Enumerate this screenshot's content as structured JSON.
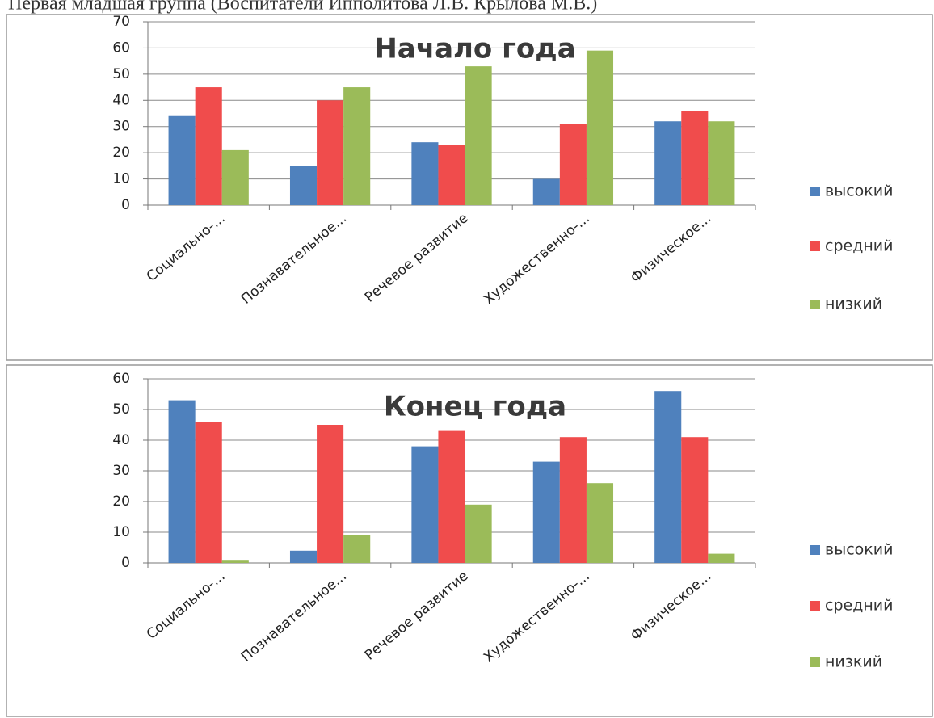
{
  "header": {
    "title": "Первая младшая группа (Воспитатели Ипполитова Л.В. Крылова М.В.)"
  },
  "chart_data": [
    {
      "type": "bar",
      "title": "Начало года",
      "categories": [
        "Социально-...",
        "Познавательное...",
        "Речевое развитие",
        "Художественно-...",
        "Физическое..."
      ],
      "series": [
        {
          "name": "высокий",
          "color": "#4f81bd",
          "values": [
            34,
            15,
            24,
            10,
            32
          ]
        },
        {
          "name": "средний",
          "color": "#f04c4c",
          "values": [
            45,
            40,
            23,
            31,
            36
          ]
        },
        {
          "name": "низкий",
          "color": "#9bbb59",
          "values": [
            21,
            45,
            53,
            59,
            32
          ]
        }
      ],
      "ylim": [
        0,
        70
      ],
      "yticks": [
        0,
        10,
        20,
        30,
        40,
        50,
        60,
        70
      ],
      "grid": true,
      "legend": "right"
    },
    {
      "type": "bar",
      "title": "Конец года",
      "categories": [
        "Социально-...",
        "Познавательное...",
        "Речевое развитие",
        "Художественно-...",
        "Физическое..."
      ],
      "series": [
        {
          "name": "высокий",
          "color": "#4f81bd",
          "values": [
            53,
            4,
            38,
            33,
            56
          ]
        },
        {
          "name": "средний",
          "color": "#f04c4c",
          "values": [
            46,
            45,
            43,
            41,
            41
          ]
        },
        {
          "name": "низкий",
          "color": "#9bbb59",
          "values": [
            1,
            9,
            19,
            26,
            3
          ]
        }
      ],
      "ylim": [
        0,
        60
      ],
      "yticks": [
        0,
        10,
        20,
        30,
        40,
        50,
        60
      ],
      "grid": true,
      "legend": "right"
    }
  ]
}
